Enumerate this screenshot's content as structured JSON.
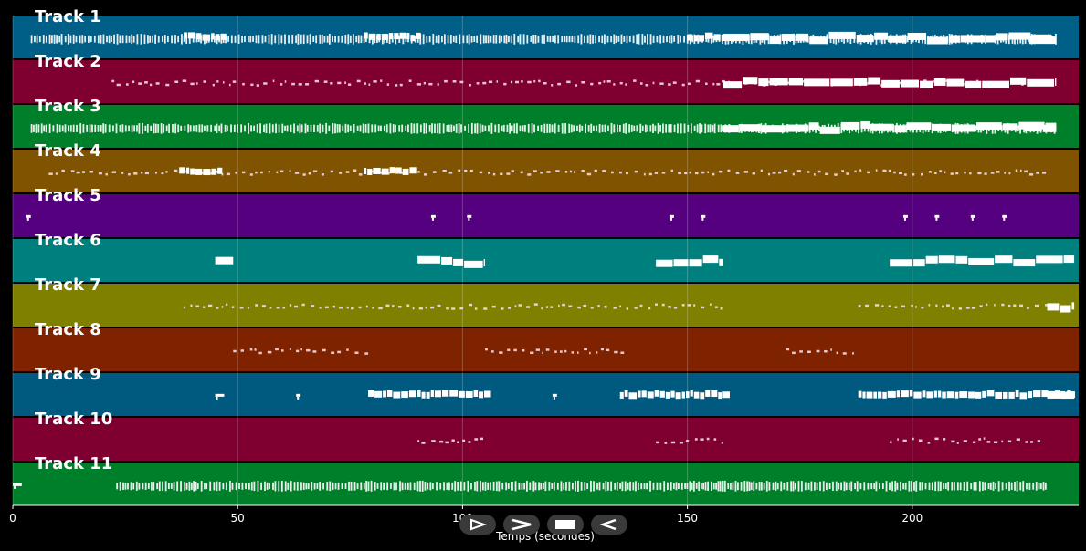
{
  "tracks": [
    {
      "label": "Track 1",
      "color": "#005f87"
    },
    {
      "label": "Track 2",
      "color": "#7f0030"
    },
    {
      "label": "Track 3",
      "color": "#007f2a"
    },
    {
      "label": "Track 4",
      "color": "#7f5300"
    },
    {
      "label": "Track 5",
      "color": "#55007f"
    },
    {
      "label": "Track 6",
      "color": "#007f7f"
    },
    {
      "label": "Track 7",
      "color": "#7f7f00"
    },
    {
      "label": "Track 8",
      "color": "#7f2200"
    },
    {
      "label": "Track 9",
      "color": "#005a80"
    },
    {
      "label": "Track 10",
      "color": "#7f0030"
    },
    {
      "label": "Track 11",
      "color": "#007f2a"
    }
  ],
  "axis": {
    "xlabel": "Temps (secondes)",
    "ticks": [
      0,
      50,
      100,
      150,
      200
    ],
    "xlim": [
      0,
      237
    ]
  },
  "controls": [
    {
      "name": "play-button",
      "icon": "play-icon"
    },
    {
      "name": "fast-forward-button",
      "icon": "forward-icon"
    },
    {
      "name": "stop-button",
      "icon": "stop-icon"
    },
    {
      "name": "rewind-button",
      "icon": "rewind-icon"
    }
  ],
  "notes": [
    [
      [
        4,
        232,
        "dense"
      ],
      [
        38,
        47,
        "block"
      ],
      [
        78,
        90,
        "block"
      ],
      [
        150,
        160,
        "block"
      ],
      [
        158,
        231,
        "thick"
      ],
      [
        226,
        232,
        "thick"
      ]
    ],
    [
      [
        22,
        231,
        "sparse"
      ],
      [
        158,
        232,
        "thick"
      ]
    ],
    [
      [
        4,
        232,
        "dense"
      ],
      [
        158,
        232,
        "thick"
      ],
      [
        225,
        232,
        "thick"
      ]
    ],
    [
      [
        8,
        230,
        "sparse"
      ],
      [
        37,
        46,
        "block"
      ],
      [
        78,
        90,
        "block"
      ]
    ],
    [
      [
        3,
        4,
        "tick"
      ],
      [
        93,
        94,
        "tick"
      ],
      [
        101,
        102,
        "tick"
      ],
      [
        146,
        147,
        "tick"
      ],
      [
        153,
        154,
        "tick"
      ],
      [
        198,
        199,
        "tick"
      ],
      [
        205,
        206,
        "tick"
      ],
      [
        213,
        214,
        "tick"
      ],
      [
        220,
        221,
        "tick"
      ]
    ],
    [
      [
        45,
        49,
        "thick"
      ],
      [
        90,
        105,
        "thick"
      ],
      [
        143,
        158,
        "thick"
      ],
      [
        195,
        236,
        "thick"
      ]
    ],
    [
      [
        38,
        158,
        "sparse"
      ],
      [
        188,
        232,
        "sparse"
      ],
      [
        230,
        236,
        "thick"
      ]
    ],
    [
      [
        49,
        79,
        "sparse"
      ],
      [
        105,
        136,
        "sparse"
      ],
      [
        172,
        188,
        "sparse"
      ]
    ],
    [
      [
        45,
        47,
        "tick"
      ],
      [
        63,
        64,
        "tick"
      ],
      [
        79,
        105,
        "block"
      ],
      [
        120,
        121,
        "tick"
      ],
      [
        135,
        158,
        "block"
      ],
      [
        188,
        236,
        "block"
      ],
      [
        230,
        236,
        "thick"
      ]
    ],
    [
      [
        90,
        105,
        "sparse"
      ],
      [
        143,
        158,
        "sparse"
      ],
      [
        195,
        229,
        "sparse"
      ]
    ],
    [
      [
        0,
        2,
        "tick"
      ],
      [
        23,
        230,
        "dense"
      ]
    ]
  ]
}
